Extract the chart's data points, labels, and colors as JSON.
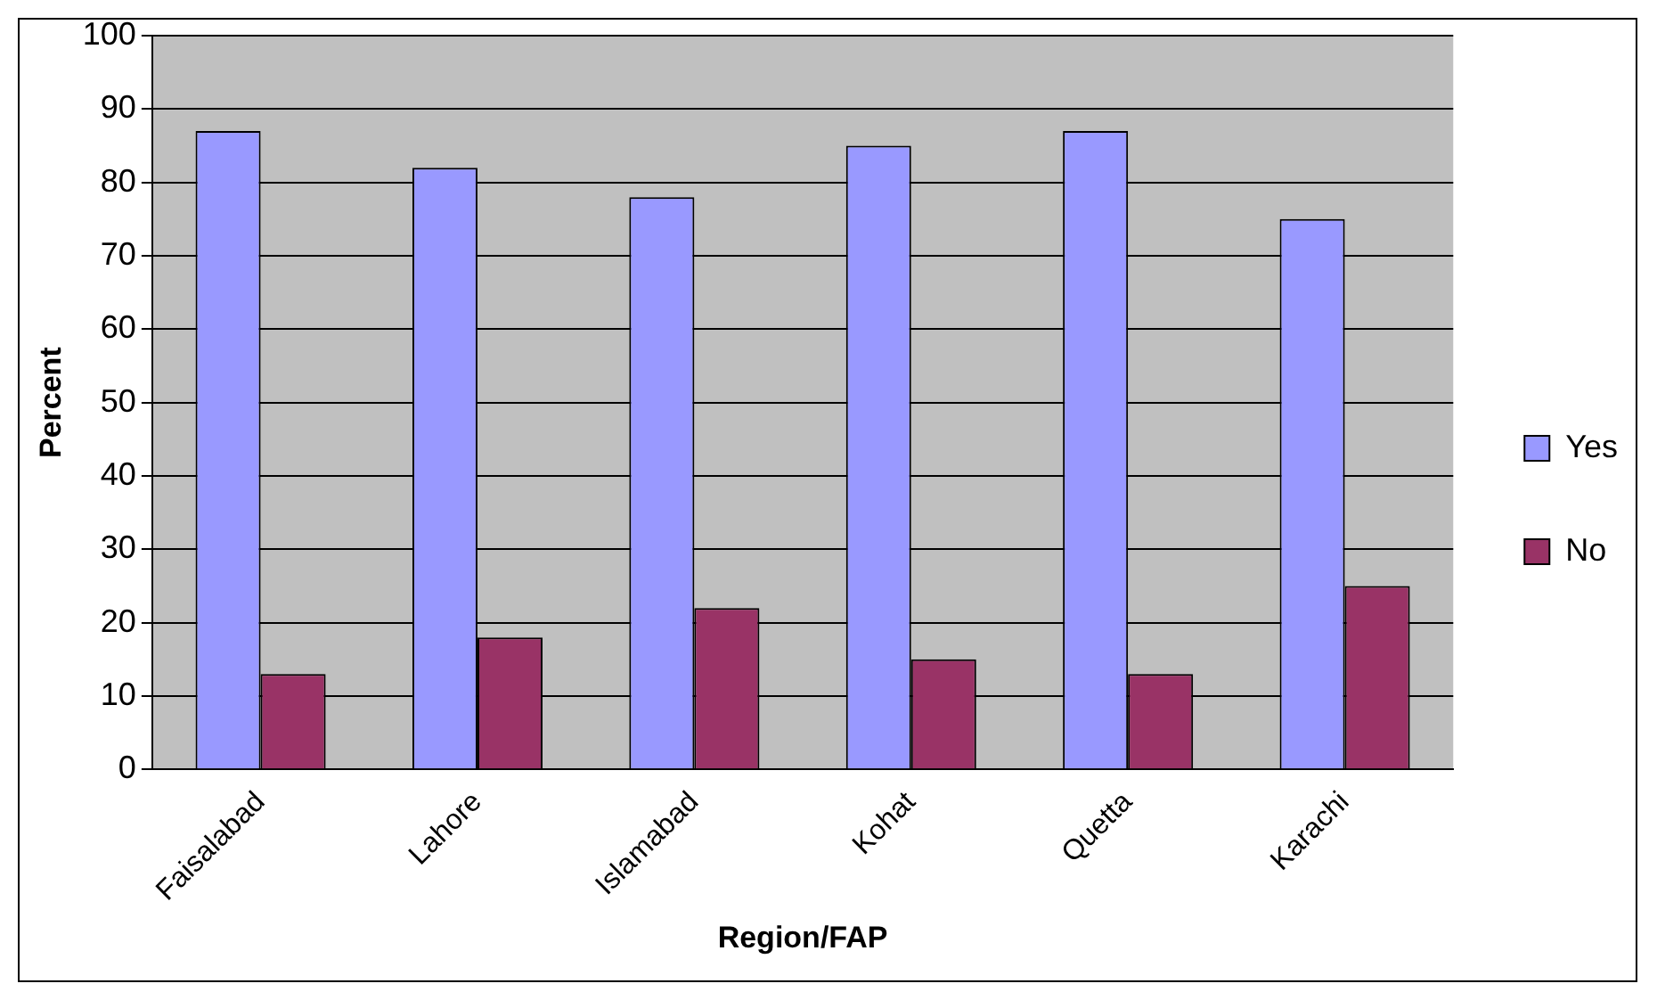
{
  "chart_data": {
    "type": "bar",
    "xlabel": "Region/FAP",
    "ylabel": "Percent",
    "categories": [
      "Faisalabad",
      "Lahore",
      "Islamabad",
      "Kohat",
      "Quetta",
      "Karachi"
    ],
    "series": [
      {
        "name": "Yes",
        "color": "#9999ff",
        "values": [
          87,
          82,
          78,
          85,
          87,
          75
        ]
      },
      {
        "name": "No",
        "color": "#993366",
        "values": [
          13,
          18,
          22,
          15,
          13,
          25
        ]
      }
    ],
    "ylim": [
      0,
      100
    ],
    "yticks": [
      0,
      10,
      20,
      30,
      40,
      50,
      60,
      70,
      80,
      90,
      100
    ],
    "grid": "y",
    "legend": "right"
  }
}
